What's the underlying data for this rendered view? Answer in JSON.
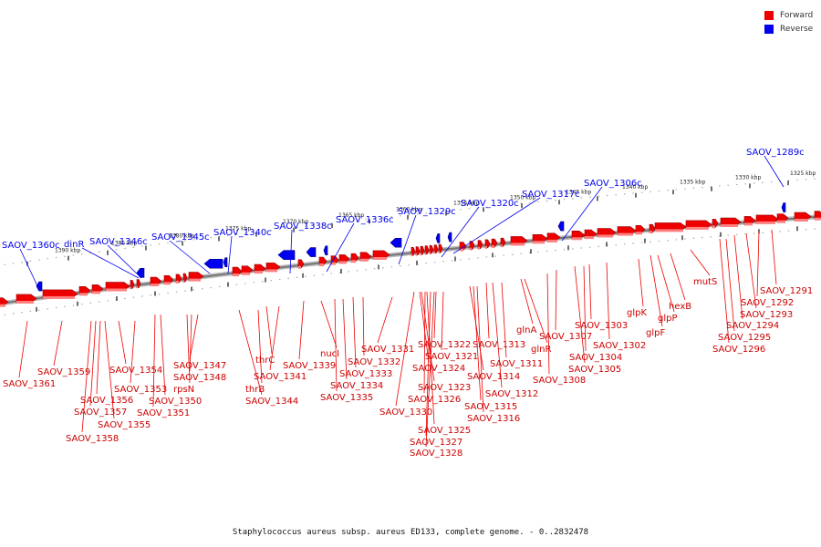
{
  "legend": {
    "forward_label": "Forward",
    "reverse_label": "Reverse",
    "forward_color": "#ee0000",
    "reverse_color": "#0000ee"
  },
  "caption": "Staphylococcus aureus subsp. aureus ED133, complete genome. - 0..2832478",
  "ticks": [
    {
      "label": "1390 kbp"
    },
    {
      "label": "1385 kbp"
    },
    {
      "label": "1380 kbp"
    },
    {
      "label": "1375 kbp"
    },
    {
      "label": "1370 kbp"
    },
    {
      "label": "1365 kbp"
    },
    {
      "label": "1360 kbp"
    },
    {
      "label": "1355 kbp"
    },
    {
      "label": "1350 kbp"
    },
    {
      "label": "1345 kbp"
    },
    {
      "label": "1340 kbp"
    },
    {
      "label": "1335 kbp"
    },
    {
      "label": "1330 kbp"
    },
    {
      "label": "1325 kbp"
    }
  ],
  "reverse_genes": [
    {
      "name": "SAOV_1360c"
    },
    {
      "name": "dinR"
    },
    {
      "name": "SAOV_1346c"
    },
    {
      "name": "SAOV_1345c"
    },
    {
      "name": "SAOV_1340c"
    },
    {
      "name": "SAOV_1338c"
    },
    {
      "name": "SAOV_1336c"
    },
    {
      "name": "SAOV_1329c"
    },
    {
      "name": "SAOV_1320c"
    },
    {
      "name": "SAOV_1317c"
    },
    {
      "name": "SAOV_1306c"
    },
    {
      "name": "SAOV_1289c"
    }
  ],
  "forward_genes": [
    {
      "name": "SAOV_1361"
    },
    {
      "name": "SAOV_1359"
    },
    {
      "name": "SAOV_1358"
    },
    {
      "name": "SAOV_1357"
    },
    {
      "name": "SAOV_1356"
    },
    {
      "name": "SAOV_1355"
    },
    {
      "name": "SAOV_1354"
    },
    {
      "name": "SAOV_1353"
    },
    {
      "name": "SAOV_1351"
    },
    {
      "name": "SAOV_1350"
    },
    {
      "name": "rpsN"
    },
    {
      "name": "SAOV_1348"
    },
    {
      "name": "SAOV_1347"
    },
    {
      "name": "thrB"
    },
    {
      "name": "SAOV_1344"
    },
    {
      "name": "thrC"
    },
    {
      "name": "SAOV_1341"
    },
    {
      "name": "SAOV_1339"
    },
    {
      "name": "nucI"
    },
    {
      "name": "SAOV_1335"
    },
    {
      "name": "SAOV_1334"
    },
    {
      "name": "SAOV_1333"
    },
    {
      "name": "SAOV_1332"
    },
    {
      "name": "SAOV_1331"
    },
    {
      "name": "SAOV_1330"
    },
    {
      "name": "SAOV_1328"
    },
    {
      "name": "SAOV_1327"
    },
    {
      "name": "SAOV_1326"
    },
    {
      "name": "SAOV_1325"
    },
    {
      "name": "SAOV_1324"
    },
    {
      "name": "SAOV_1323"
    },
    {
      "name": "SAOV_1322"
    },
    {
      "name": "SAOV_1321"
    },
    {
      "name": "SAOV_1316"
    },
    {
      "name": "SAOV_1315"
    },
    {
      "name": "SAOV_1314"
    },
    {
      "name": "SAOV_1313"
    },
    {
      "name": "SAOV_1312"
    },
    {
      "name": "SAOV_1311"
    },
    {
      "name": "glnR"
    },
    {
      "name": "glnA"
    },
    {
      "name": "SAOV_1308"
    },
    {
      "name": "SAOV_1307"
    },
    {
      "name": "SAOV_1305"
    },
    {
      "name": "SAOV_1304"
    },
    {
      "name": "SAOV_1303"
    },
    {
      "name": "SAOV_1302"
    },
    {
      "name": "glpK"
    },
    {
      "name": "glpF"
    },
    {
      "name": "glpP"
    },
    {
      "name": "hexB"
    },
    {
      "name": "mutS"
    },
    {
      "name": "SAOV_1296"
    },
    {
      "name": "SAOV_1295"
    },
    {
      "name": "SAOV_1294"
    },
    {
      "name": "SAOV_1293"
    },
    {
      "name": "SAOV_1292"
    },
    {
      "name": "SAOV_1291"
    }
  ]
}
